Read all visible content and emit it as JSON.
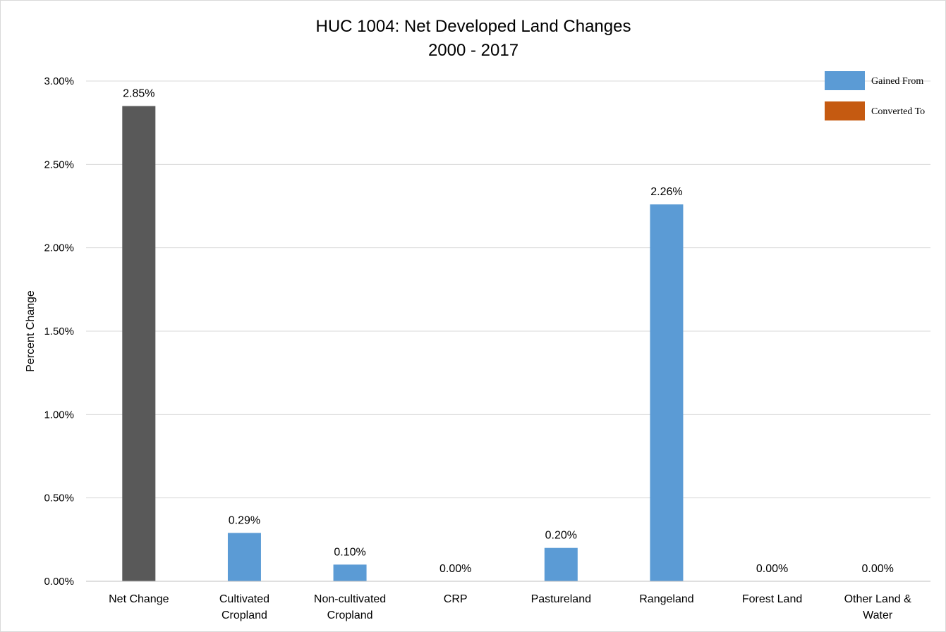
{
  "chart_data": {
    "type": "bar",
    "title": [
      "HUC 1004: Net Developed Land Changes",
      "2000 - 2017"
    ],
    "xlabel": "",
    "ylabel": "Percent Change",
    "ylim": [
      0,
      3
    ],
    "yticks": [
      0,
      0.5,
      1.0,
      1.5,
      2.0,
      2.5,
      3.0
    ],
    "ytick_labels": [
      "0.00%",
      "0.50%",
      "1.00%",
      "1.50%",
      "2.00%",
      "2.50%",
      "3.00%"
    ],
    "grid": true,
    "legend_position": "top-right",
    "categories": [
      [
        "Net Change"
      ],
      [
        "Cultivated",
        "Cropland"
      ],
      [
        "Non-cultivated",
        "Cropland"
      ],
      [
        "CRP"
      ],
      [
        "Pastureland"
      ],
      [
        "Rangeland"
      ],
      [
        "Forest Land"
      ],
      [
        "Other Land &",
        "Water"
      ]
    ],
    "values": [
      2.85,
      0.29,
      0.1,
      0.0,
      0.2,
      2.26,
      0.0,
      0.0
    ],
    "value_labels": [
      "2.85%",
      "0.29%",
      "0.10%",
      "0.00%",
      "0.20%",
      "2.26%",
      "0.00%",
      "0.00%"
    ],
    "bar_colors": [
      "#595959",
      "#5b9bd5",
      "#5b9bd5",
      "#5b9bd5",
      "#5b9bd5",
      "#5b9bd5",
      "#5b9bd5",
      "#5b9bd5"
    ],
    "legend": [
      {
        "name": "Gained From",
        "color": "#5b9bd5"
      },
      {
        "name": "Converted To",
        "color": "#c55a11"
      }
    ]
  }
}
